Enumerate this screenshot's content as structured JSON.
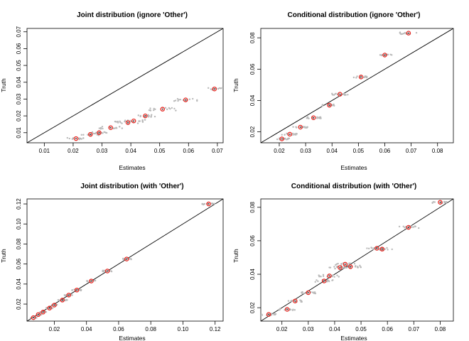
{
  "figure": {
    "colors": {
      "background": "#ffffff",
      "sample_points": "#b9b9b9",
      "point_ring": "#e8251f",
      "point_center": "#3a3a3a",
      "reference_line": "#000000"
    }
  },
  "chart_data": [
    {
      "type": "scatter",
      "title": "Joint distribution (ignore 'Other')",
      "xlabel": "Estimates",
      "ylabel": "Truth",
      "xlim": [
        0.004,
        0.072
      ],
      "ylim": [
        0.004,
        0.072
      ],
      "xticks": [
        0.01,
        0.02,
        0.03,
        0.04,
        0.05,
        0.06,
        0.07
      ],
      "yticks": [
        0.01,
        0.02,
        0.03,
        0.04,
        0.05,
        0.06,
        0.07
      ],
      "xtick_labels": [
        "0.01",
        "0.02",
        "0.03",
        "0.04",
        "0.05",
        "0.06",
        "0.07"
      ],
      "ytick_labels": [
        "0.01",
        "0.02",
        "0.03",
        "0.04",
        "0.05",
        "0.06",
        "0.07"
      ],
      "reference_line": "y = x",
      "points": [
        {
          "x": 0.021,
          "y": 0.0065,
          "spread": 0.003
        },
        {
          "x": 0.026,
          "y": 0.009,
          "spread": 0.0035
        },
        {
          "x": 0.029,
          "y": 0.01,
          "spread": 0.003
        },
        {
          "x": 0.033,
          "y": 0.013,
          "spread": 0.004
        },
        {
          "x": 0.039,
          "y": 0.016,
          "spread": 0.0045
        },
        {
          "x": 0.041,
          "y": 0.017,
          "spread": 0.004
        },
        {
          "x": 0.045,
          "y": 0.02,
          "spread": 0.004
        },
        {
          "x": 0.051,
          "y": 0.024,
          "spread": 0.005
        },
        {
          "x": 0.059,
          "y": 0.0295,
          "spread": 0.004
        },
        {
          "x": 0.069,
          "y": 0.036,
          "spread": 0.004
        }
      ]
    },
    {
      "type": "scatter",
      "title": "Conditional distribution (ignore 'Other')",
      "xlabel": "Estimates",
      "ylabel": "Truth",
      "xlim": [
        0.013,
        0.086
      ],
      "ylim": [
        0.013,
        0.086
      ],
      "xticks": [
        0.02,
        0.03,
        0.04,
        0.05,
        0.06,
        0.07,
        0.08
      ],
      "yticks": [
        0.02,
        0.04,
        0.06,
        0.08
      ],
      "xtick_labels": [
        "0.02",
        "0.03",
        "0.04",
        "0.05",
        "0.06",
        "0.07",
        "0.08"
      ],
      "ytick_labels": [
        "0.02",
        "0.04",
        "0.06",
        "0.08"
      ],
      "reference_line": "y = x",
      "points": [
        {
          "x": 0.021,
          "y": 0.0155,
          "spread": 0.003
        },
        {
          "x": 0.024,
          "y": 0.0185,
          "spread": 0.003
        },
        {
          "x": 0.028,
          "y": 0.023,
          "spread": 0.003
        },
        {
          "x": 0.033,
          "y": 0.029,
          "spread": 0.003
        },
        {
          "x": 0.039,
          "y": 0.037,
          "spread": 0.003
        },
        {
          "x": 0.043,
          "y": 0.044,
          "spread": 0.003
        },
        {
          "x": 0.051,
          "y": 0.055,
          "spread": 0.003
        },
        {
          "x": 0.06,
          "y": 0.069,
          "spread": 0.003
        },
        {
          "x": 0.069,
          "y": 0.083,
          "spread": 0.004
        }
      ]
    },
    {
      "type": "scatter",
      "title": "Joint distribution (with 'Other')",
      "xlabel": "Estimates",
      "ylabel": "Truth",
      "xlim": [
        0.003,
        0.125
      ],
      "ylim": [
        0.003,
        0.125
      ],
      "xticks": [
        0.02,
        0.04,
        0.06,
        0.08,
        0.1,
        0.12
      ],
      "yticks": [
        0.02,
        0.04,
        0.06,
        0.08,
        0.1,
        0.12
      ],
      "xtick_labels": [
        "0.02",
        "0.04",
        "0.06",
        "0.08",
        "0.10",
        "0.12"
      ],
      "ytick_labels": [
        "0.02",
        "0.04",
        "0.06",
        "0.08",
        "0.10",
        "0.12"
      ],
      "reference_line": "y = x",
      "points": [
        {
          "x": 0.007,
          "y": 0.0065,
          "spread": 0.002
        },
        {
          "x": 0.01,
          "y": 0.0095,
          "spread": 0.002
        },
        {
          "x": 0.013,
          "y": 0.012,
          "spread": 0.002
        },
        {
          "x": 0.017,
          "y": 0.016,
          "spread": 0.002
        },
        {
          "x": 0.02,
          "y": 0.019,
          "spread": 0.002
        },
        {
          "x": 0.025,
          "y": 0.024,
          "spread": 0.003
        },
        {
          "x": 0.029,
          "y": 0.029,
          "spread": 0.003
        },
        {
          "x": 0.034,
          "y": 0.034,
          "spread": 0.003
        },
        {
          "x": 0.043,
          "y": 0.043,
          "spread": 0.003
        },
        {
          "x": 0.053,
          "y": 0.053,
          "spread": 0.003
        },
        {
          "x": 0.065,
          "y": 0.065,
          "spread": 0.003
        },
        {
          "x": 0.116,
          "y": 0.12,
          "spread": 0.004
        }
      ]
    },
    {
      "type": "scatter",
      "title": "Conditional distribution (with 'Other')",
      "xlabel": "Estimates",
      "ylabel": "Truth",
      "xlim": [
        0.012,
        0.085
      ],
      "ylim": [
        0.012,
        0.085
      ],
      "xticks": [
        0.02,
        0.03,
        0.04,
        0.05,
        0.06,
        0.07,
        0.08
      ],
      "yticks": [
        0.02,
        0.04,
        0.06,
        0.08
      ],
      "xtick_labels": [
        "0.02",
        "0.03",
        "0.04",
        "0.05",
        "0.06",
        "0.07",
        "0.08"
      ],
      "ytick_labels": [
        "0.02",
        "0.04",
        "0.06",
        "0.08"
      ],
      "reference_line": "y = x",
      "points": [
        {
          "x": 0.015,
          "y": 0.016,
          "spread": 0.003
        },
        {
          "x": 0.022,
          "y": 0.019,
          "spread": 0.003
        },
        {
          "x": 0.025,
          "y": 0.024,
          "spread": 0.003
        },
        {
          "x": 0.03,
          "y": 0.029,
          "spread": 0.003
        },
        {
          "x": 0.036,
          "y": 0.036,
          "spread": 0.004
        },
        {
          "x": 0.038,
          "y": 0.039,
          "spread": 0.004
        },
        {
          "x": 0.042,
          "y": 0.044,
          "spread": 0.004
        },
        {
          "x": 0.044,
          "y": 0.046,
          "spread": 0.004
        },
        {
          "x": 0.046,
          "y": 0.0445,
          "spread": 0.004
        },
        {
          "x": 0.056,
          "y": 0.0555,
          "spread": 0.004
        },
        {
          "x": 0.058,
          "y": 0.055,
          "spread": 0.004
        },
        {
          "x": 0.068,
          "y": 0.068,
          "spread": 0.004
        },
        {
          "x": 0.08,
          "y": 0.083,
          "spread": 0.003
        }
      ]
    }
  ]
}
